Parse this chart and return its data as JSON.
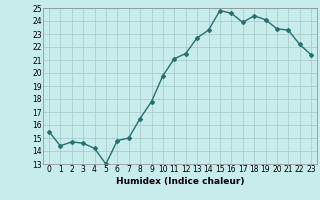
{
  "x": [
    0,
    1,
    2,
    3,
    4,
    5,
    6,
    7,
    8,
    9,
    10,
    11,
    12,
    13,
    14,
    15,
    16,
    17,
    18,
    19,
    20,
    21,
    22,
    23
  ],
  "y": [
    15.5,
    14.4,
    14.7,
    14.6,
    14.2,
    13.0,
    14.8,
    15.0,
    16.5,
    17.8,
    19.8,
    21.1,
    21.5,
    22.7,
    23.3,
    24.8,
    24.6,
    23.9,
    24.4,
    24.1,
    23.4,
    23.3,
    22.2,
    21.4
  ],
  "line_color": "#2a6e6e",
  "marker": "D",
  "marker_size": 2.0,
  "bg_color": "#c8ecec",
  "grid_color": "#a0c8c8",
  "xlabel": "Humidex (Indice chaleur)",
  "xlim": [
    -0.5,
    23.5
  ],
  "ylim": [
    13,
    25
  ],
  "yticks": [
    13,
    14,
    15,
    16,
    17,
    18,
    19,
    20,
    21,
    22,
    23,
    24,
    25
  ],
  "xticks": [
    0,
    1,
    2,
    3,
    4,
    5,
    6,
    7,
    8,
    9,
    10,
    11,
    12,
    13,
    14,
    15,
    16,
    17,
    18,
    19,
    20,
    21,
    22,
    23
  ],
  "xlabel_fontsize": 6.5,
  "tick_fontsize": 5.5,
  "line_width": 1.0
}
